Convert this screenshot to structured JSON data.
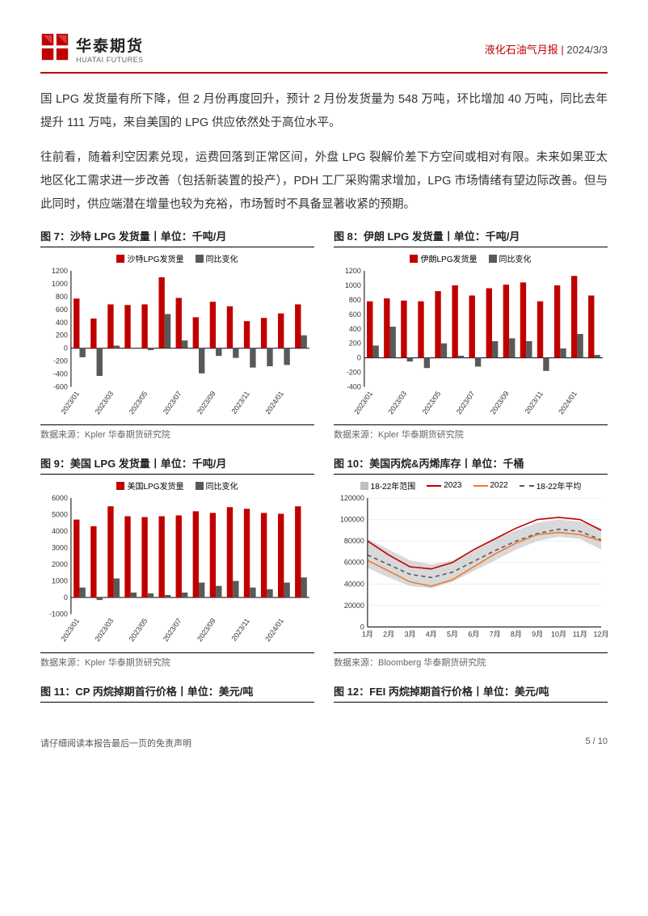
{
  "header": {
    "logo_cn": "华泰期货",
    "logo_en": "HUATAI FUTURES",
    "report_name": "液化石油气月报",
    "sep": " | ",
    "date": "2024/3/3"
  },
  "paragraphs": {
    "p1": "国 LPG 发货量有所下降，但 2 月份再度回升，预计 2 月份发货量为 548 万吨，环比增加 40 万吨，同比去年提升 111 万吨，来自美国的 LPG 供应依然处于高位水平。",
    "p2": "往前看，随着利空因素兑现，运费回落到正常区间，外盘 LPG 裂解价差下方空间或相对有限。未来如果亚太地区化工需求进一步改善（包括新装置的投产），PDH 工厂采购需求增加，LPG 市场情绪有望边际改善。但与此同时，供应端潜在增量也较为充裕，市场暂时不具备显著收紧的预期。"
  },
  "chart7": {
    "title": "图 7：沙特 LPG 发货量丨单位：千吨/月",
    "type": "bar",
    "legend": [
      {
        "label": "沙特LPG发货量",
        "color": "#c00000"
      },
      {
        "label": "同比变化",
        "color": "#595959"
      }
    ],
    "categories": [
      "2023/01",
      "",
      "2023/03",
      "",
      "2023/05",
      "",
      "2023/07",
      "",
      "2023/09",
      "",
      "2023/11",
      "",
      "2024/01",
      ""
    ],
    "series": {
      "ship": [
        770,
        460,
        680,
        670,
        680,
        1100,
        780,
        480,
        720,
        650,
        420,
        470,
        540,
        680
      ],
      "delta": [
        -140,
        -430,
        40,
        -10,
        -30,
        530,
        120,
        -390,
        -120,
        -150,
        -300,
        -280,
        -260,
        200
      ]
    },
    "ylim": [
      -600,
      1200
    ],
    "ytick_step": 200,
    "bar_colors": [
      "#c00000",
      "#595959"
    ],
    "bg": "#ffffff",
    "axis_color": "#000000",
    "bar_width": 0.35,
    "label_fontsize": 9,
    "source_prefix": "数据来源：",
    "source": "Kpler 华泰期货研究院"
  },
  "chart8": {
    "title": "图 8：伊朗 LPG 发货量丨单位：千吨/月",
    "type": "bar",
    "legend": [
      {
        "label": "伊朗LPG发货量",
        "color": "#c00000"
      },
      {
        "label": "同比变化",
        "color": "#595959"
      }
    ],
    "categories": [
      "2023/01",
      "",
      "2023/03",
      "",
      "2023/05",
      "",
      "2023/07",
      "",
      "2023/09",
      "",
      "2023/11",
      "",
      "2024/01",
      ""
    ],
    "series": {
      "ship": [
        780,
        820,
        790,
        780,
        920,
        1000,
        860,
        960,
        1010,
        1040,
        780,
        1000,
        1130,
        860
      ],
      "delta": [
        170,
        430,
        -50,
        -140,
        200,
        30,
        -120,
        230,
        270,
        230,
        -180,
        130,
        330,
        40
      ]
    },
    "ylim": [
      -400,
      1200
    ],
    "ytick_step": 200,
    "bar_colors": [
      "#c00000",
      "#595959"
    ],
    "bg": "#ffffff",
    "axis_color": "#000000",
    "bar_width": 0.35,
    "label_fontsize": 9,
    "source_prefix": "数据来源：",
    "source": "Kpler 华泰期货研究院"
  },
  "chart9": {
    "title": "图 9：美国 LPG 发货量丨单位：千吨/月",
    "type": "bar",
    "legend": [
      {
        "label": "美国LPG发货量",
        "color": "#c00000"
      },
      {
        "label": "同比变化",
        "color": "#595959"
      }
    ],
    "categories": [
      "2023/01",
      "",
      "2023/03",
      "",
      "2023/05",
      "",
      "2023/07",
      "",
      "2023/09",
      "",
      "2023/11",
      "",
      "2024/01",
      ""
    ],
    "series": {
      "ship": [
        4700,
        4300,
        5500,
        4900,
        4850,
        4900,
        4950,
        5200,
        5100,
        5450,
        5350,
        5100,
        5050,
        5500
      ],
      "delta": [
        600,
        -150,
        1150,
        300,
        250,
        150,
        300,
        900,
        700,
        1000,
        600,
        500,
        900,
        1210
      ]
    },
    "ylim": [
      -1000,
      6000
    ],
    "ytick_step": 1000,
    "bar_colors": [
      "#c00000",
      "#595959"
    ],
    "bg": "#ffffff",
    "axis_color": "#000000",
    "bar_width": 0.35,
    "label_fontsize": 9,
    "source_prefix": "数据来源：",
    "source": "Kpler 华泰期货研究院"
  },
  "chart10": {
    "title": "图 10：美国丙烷&丙烯库存丨单位：千桶",
    "type": "line-area",
    "legend": [
      {
        "label": "18-22年范围",
        "color": "#bfbfbf",
        "kind": "area"
      },
      {
        "label": "2023",
        "color": "#c00000",
        "kind": "line"
      },
      {
        "label": "2022",
        "color": "#ed7d31",
        "kind": "line"
      },
      {
        "label": "18-22年平均",
        "color": "#595959",
        "kind": "dash"
      }
    ],
    "x_labels": [
      "1月",
      "2月",
      "3月",
      "4月",
      "5月",
      "6月",
      "7月",
      "8月",
      "9月",
      "10月",
      "11月",
      "12月"
    ],
    "range_upper": [
      82000,
      72000,
      62000,
      58000,
      62000,
      72000,
      82000,
      90000,
      97000,
      100000,
      98000,
      92000
    ],
    "range_lower": [
      55000,
      46000,
      38000,
      36000,
      42000,
      52000,
      62000,
      72000,
      80000,
      84000,
      82000,
      72000
    ],
    "avg": [
      67000,
      58000,
      49000,
      46000,
      51000,
      61000,
      71000,
      80000,
      87000,
      91000,
      89000,
      81000
    ],
    "y2022": [
      62000,
      52000,
      42000,
      38000,
      44000,
      56000,
      68000,
      78000,
      86000,
      88000,
      86000,
      80000
    ],
    "y2023": [
      80000,
      67000,
      56000,
      54000,
      60000,
      72000,
      82000,
      92000,
      100000,
      102000,
      100000,
      90000
    ],
    "ylim": [
      0,
      120000
    ],
    "ytick_step": 20000,
    "bg": "#ffffff",
    "axis_color": "#000000",
    "label_fontsize": 9,
    "source_prefix": "数据来源：",
    "source": "Bloomberg 华泰期货研究院"
  },
  "chart11": {
    "title": "图 11：CP 丙烷掉期首行价格丨单位：美元/吨"
  },
  "chart12": {
    "title": "图 12：FEI 丙烷掉期首行价格丨单位：美元/吨"
  },
  "footer": {
    "disclaimer": "请仔细阅读本报告最后一页的免责声明",
    "page": "5 / 10"
  },
  "colors": {
    "brand_red": "#c00000",
    "dark_gray": "#595959",
    "light_gray": "#bfbfbf",
    "orange": "#ed7d31"
  }
}
